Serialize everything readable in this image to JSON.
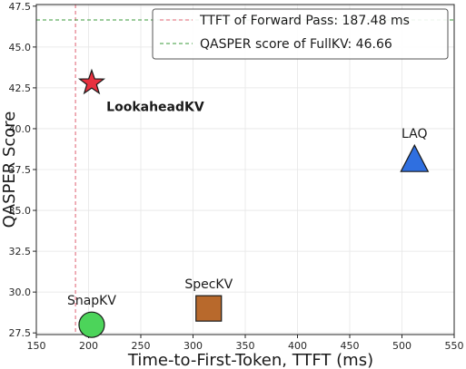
{
  "chart_data": {
    "type": "scatter",
    "title": "",
    "xlabel": "Time-to-First-Token, TTFT (ms)",
    "ylabel": "QASPER Score",
    "xlim": [
      150,
      550
    ],
    "ylim": [
      27.4,
      47.6
    ],
    "xticks": [
      150,
      200,
      250,
      300,
      350,
      400,
      450,
      500,
      550
    ],
    "yticks": [
      27.5,
      30.0,
      32.5,
      35.0,
      37.5,
      40.0,
      42.5,
      45.0,
      47.5
    ],
    "xtick_labels": [
      "150",
      "200",
      "250",
      "300",
      "350",
      "400",
      "450",
      "500",
      "550"
    ],
    "ytick_labels": [
      "27.5",
      "30.0",
      "32.5",
      "35.0",
      "37.5",
      "40.0",
      "42.5",
      "45.0",
      "47.5"
    ],
    "grid": true,
    "points": [
      {
        "name": "LookaheadKV",
        "x": 203,
        "y": 42.8,
        "marker": "star",
        "color": "#e8303f",
        "label_bold": true,
        "label_position": "below"
      },
      {
        "name": "LAQ",
        "x": 512,
        "y": 38.1,
        "marker": "triangle",
        "color": "#2f6fe0",
        "label_bold": false,
        "label_position": "above"
      },
      {
        "name": "SpecKV",
        "x": 315,
        "y": 29.0,
        "marker": "square",
        "color": "#b8692c",
        "label_bold": false,
        "label_position": "above"
      },
      {
        "name": "SnapKV",
        "x": 203,
        "y": 28.0,
        "marker": "circle",
        "color": "#4cd45a",
        "label_bold": false,
        "label_position": "above"
      }
    ],
    "reference_lines": [
      {
        "orientation": "vertical",
        "value": 187.48,
        "color": "#e06070",
        "label": "TTFT of Forward Pass: 187.48 ms"
      },
      {
        "orientation": "horizontal",
        "value": 46.66,
        "color": "#3a9a3a",
        "label": "QASPER score of FullKV: 46.66"
      }
    ],
    "legend_position": "top-right"
  }
}
